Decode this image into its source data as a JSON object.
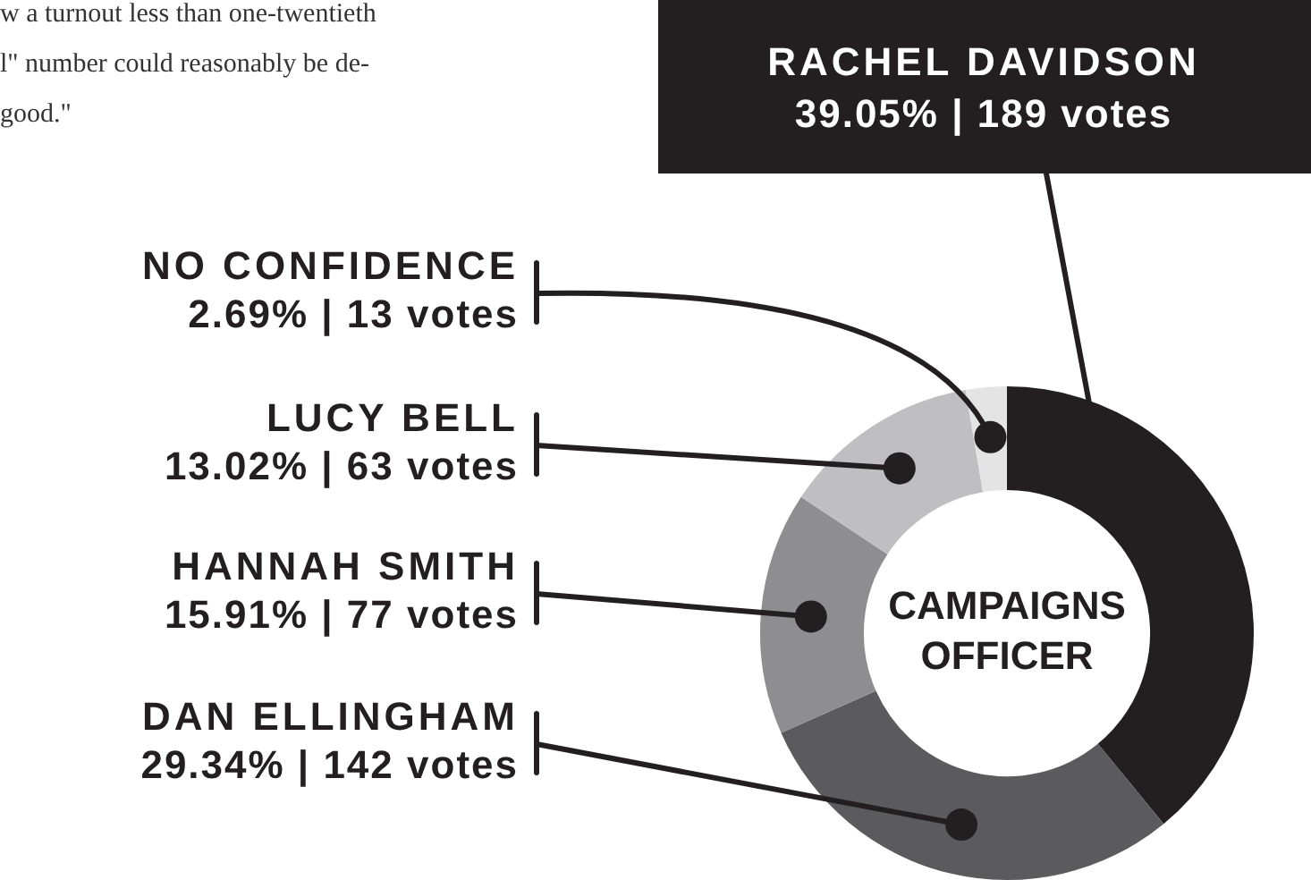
{
  "chart_data": {
    "type": "donut",
    "title": "CAMPAIGNS OFFICER",
    "categories": [
      "RACHEL DAVIDSON",
      "DAN ELLINGHAM",
      "HANNAH SMITH",
      "LUCY BELL",
      "NO CONFIDENCE"
    ],
    "values": [
      189,
      142,
      77,
      63,
      13
    ],
    "value_labels": [
      "39.05% | 189 votes",
      "29.34% | 142 votes",
      "15.91% | 77 votes",
      "13.02% | 63 votes",
      "2.69% | 13 votes"
    ],
    "colors": [
      "#231f20",
      "#5b5b5d",
      "#8e8e90",
      "#bfbfc1",
      "#e4e4e5"
    ],
    "annotations": [
      "w a turnout less than one-twentieth",
      "l\" number could reasonably be de-",
      "good.\""
    ],
    "legend": false
  }
}
